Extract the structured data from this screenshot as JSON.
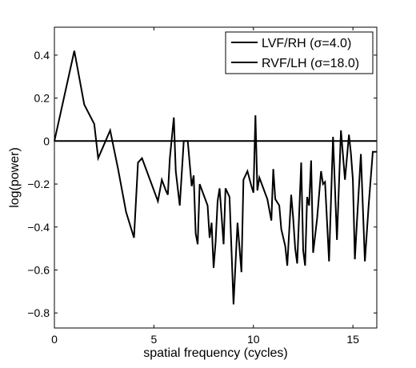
{
  "chart_data": {
    "type": "line",
    "xlabel": "spatial frequency (cycles)",
    "ylabel": "log(power)",
    "xlim": [
      0,
      16.2
    ],
    "ylim": [
      -0.87,
      0.53
    ],
    "xticks": [
      0,
      5,
      10,
      15
    ],
    "yticks": [
      -0.8,
      -0.6,
      -0.4,
      -0.2,
      0,
      0.2,
      0.4
    ],
    "ytick_labels": [
      "−0.8",
      "−0.6",
      "−0.4",
      "−0.2",
      "0",
      "0.2",
      "0.4"
    ],
    "grid": false,
    "legend_position": "top-right",
    "series": [
      {
        "name": "LVF/RH (σ=4.0)",
        "color": "#000000",
        "x": [
          0,
          16.2
        ],
        "y": [
          0,
          0
        ]
      },
      {
        "name": "RVF/LH (σ=18.0)",
        "color": "#000000",
        "x": [
          0,
          1,
          1.5,
          2,
          2.2,
          2.8,
          3.2,
          3.6,
          4,
          4.2,
          4.4,
          5.2,
          5.4,
          5.6,
          5.7,
          5.8,
          6,
          6.1,
          6.3,
          6.5,
          6.7,
          6.9,
          7,
          7.1,
          7.2,
          7.3,
          7.7,
          7.8,
          7.9,
          8,
          8.1,
          8.2,
          8.3,
          8.5,
          8.6,
          8.8,
          8.9,
          9,
          9.2,
          9.4,
          9.5,
          9.7,
          9.9,
          10,
          10.1,
          10.2,
          10.3,
          10.7,
          10.9,
          11,
          11.1,
          11.3,
          11.4,
          11.6,
          11.7,
          11.9,
          12,
          12.1,
          12.2,
          12.4,
          12.5,
          12.6,
          12.7,
          12.8,
          12.9,
          13,
          13.2,
          13.4,
          13.5,
          13.6,
          13.8,
          14,
          14.2,
          14.4,
          14.6,
          14.8,
          14.9,
          15,
          15.1,
          15.2,
          15.4,
          15.6,
          15.8,
          16,
          16.2
        ],
        "y": [
          0,
          0.42,
          0.17,
          0.08,
          -0.08,
          0.05,
          -0.13,
          -0.33,
          -0.45,
          -0.1,
          -0.08,
          -0.28,
          -0.18,
          -0.23,
          -0.25,
          -0.08,
          0.11,
          -0.14,
          -0.3,
          0,
          0,
          -0.21,
          -0.16,
          -0.43,
          -0.48,
          -0.2,
          -0.3,
          -0.45,
          -0.38,
          -0.59,
          -0.47,
          -0.28,
          -0.22,
          -0.48,
          -0.22,
          -0.26,
          -0.51,
          -0.76,
          -0.38,
          -0.61,
          -0.18,
          -0.14,
          -0.21,
          -0.24,
          0.12,
          -0.23,
          -0.17,
          -0.27,
          -0.37,
          -0.13,
          -0.27,
          -0.3,
          -0.41,
          -0.49,
          -0.58,
          -0.25,
          -0.36,
          -0.5,
          -0.57,
          -0.1,
          -0.51,
          -0.58,
          -0.26,
          -0.3,
          -0.09,
          -0.52,
          -0.36,
          -0.14,
          -0.2,
          -0.19,
          -0.56,
          0.02,
          -0.46,
          0.05,
          -0.18,
          0.03,
          -0.06,
          -0.18,
          -0.55,
          -0.38,
          -0.06,
          -0.56,
          -0.29,
          -0.05,
          -0.05
        ]
      }
    ]
  }
}
